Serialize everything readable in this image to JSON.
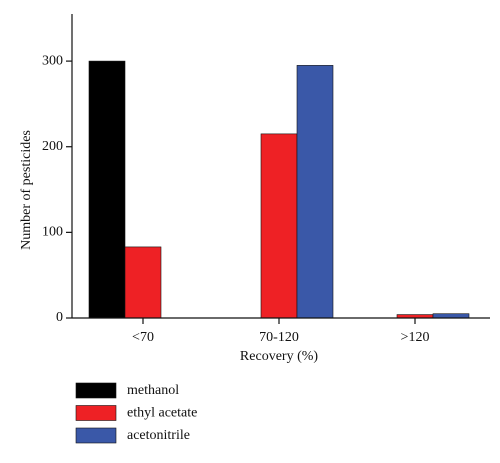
{
  "chart_data": {
    "type": "bar",
    "x_label": "Recovery (%)",
    "y_label": "Number of pesticides",
    "categories": [
      "<70",
      "70-120",
      ">120"
    ],
    "series": [
      {
        "name": "methanol",
        "color": "#000000",
        "values": [
          300,
          0,
          0
        ]
      },
      {
        "name": "ethyl acetate",
        "color": "#ee2125",
        "values": [
          83,
          215,
          4
        ]
      },
      {
        "name": "acetonitrile",
        "color": "#3a58a8",
        "values": [
          0,
          295,
          5
        ]
      }
    ],
    "ylim": [
      0,
      355
    ],
    "yticks": [
      0,
      100,
      200,
      300
    ],
    "grid": false,
    "legend": "bottom-left"
  }
}
